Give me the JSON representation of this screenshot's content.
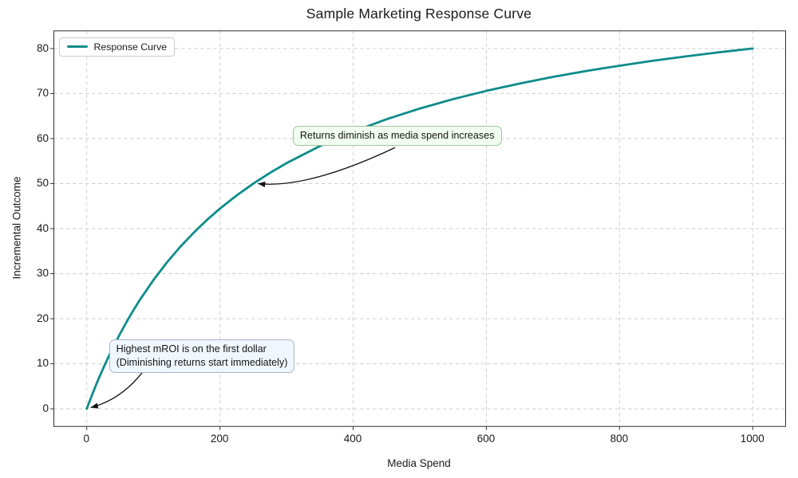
{
  "chart_data": {
    "type": "line",
    "title": "Sample Marketing Response Curve",
    "xlabel": "Media Spend",
    "ylabel": "Incremental Outcome",
    "xlim": [
      -50,
      1050
    ],
    "ylim": [
      -4,
      84
    ],
    "x_ticks": [
      0,
      200,
      400,
      600,
      800,
      1000
    ],
    "y_ticks": [
      0,
      10,
      20,
      30,
      40,
      50,
      60,
      70,
      80
    ],
    "grid": "dashed",
    "grid_color": "#cfcfcf",
    "legend_position": "upper-left",
    "series": [
      {
        "name": "Response Curve",
        "color": "#0e8c8c",
        "x": [
          0,
          1,
          2,
          3,
          4,
          5,
          6,
          8,
          10,
          12,
          15,
          20,
          25,
          30,
          35,
          40,
          50,
          60,
          70,
          80,
          100,
          120,
          140,
          160,
          180,
          200,
          225,
          250,
          275,
          300,
          350,
          400,
          450,
          500,
          550,
          600,
          650,
          700,
          750,
          800,
          850,
          900,
          950,
          1000
        ],
        "y": [
          0,
          0.4,
          0.79,
          1.19,
          1.57,
          1.96,
          2.34,
          3.1,
          3.85,
          4.58,
          5.66,
          7.41,
          9.09,
          10.71,
          12.28,
          13.79,
          16.67,
          19.35,
          21.88,
          24.24,
          28.57,
          32.43,
          35.9,
          39.02,
          41.86,
          44.44,
          47.37,
          50,
          52.38,
          54.55,
          58.33,
          61.54,
          64.29,
          66.67,
          68.75,
          70.59,
          72.22,
          73.68,
          75,
          76.19,
          77.27,
          78.26,
          79.17,
          80
        ]
      }
    ],
    "annotations": [
      {
        "id": "diminishing-returns",
        "text_lines": [
          "Returns diminish as media spend increases"
        ],
        "bg": "#f0fff0",
        "border": "#a3c2a3",
        "box": {
          "x": 310,
          "y": 62.6
        },
        "arrow": {
          "from": {
            "x": 463,
            "y": 58
          },
          "ctrl": {
            "x": 331,
            "y": 48.8
          },
          "to": {
            "x": 257,
            "y": 50
          }
        }
      },
      {
        "id": "highest-mroi",
        "text_lines": [
          "Highest mROI is on the first dollar",
          "(Diminishing returns start immediately)"
        ],
        "bg": "#f0f7ff",
        "border": "#a8b6c8",
        "box": {
          "x": 34,
          "y": 15.2
        },
        "arrow": {
          "from": {
            "x": 83,
            "y": 8
          },
          "ctrl": {
            "x": 50,
            "y": 1.9
          },
          "to": {
            "x": 6,
            "y": 0.3
          }
        }
      }
    ]
  }
}
